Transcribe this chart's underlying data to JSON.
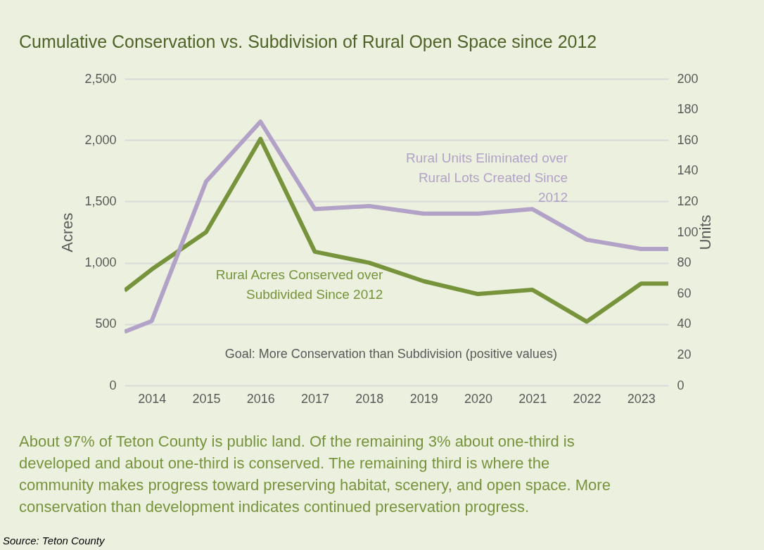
{
  "chart_data": {
    "type": "line",
    "title": "Cumulative Conservation vs. Subdivision of Rural Open Space since 2012",
    "ylabel": "Acres",
    "y2label": "Units",
    "x": [
      2013.5,
      2014,
      2015,
      2016,
      2017,
      2018,
      2019,
      2020,
      2021,
      2022,
      2023,
      2023.5
    ],
    "xlim": [
      2013.5,
      2023.5
    ],
    "xticks": [
      2014,
      2015,
      2016,
      2017,
      2018,
      2019,
      2020,
      2021,
      2022,
      2023
    ],
    "ylim": [
      0,
      2500
    ],
    "yticks": [
      0,
      {
        "value": 500,
        "label": "500"
      },
      {
        "value": 1000,
        "label": "1,000"
      },
      {
        "value": 1500,
        "label": "1,500"
      },
      {
        "value": 2000,
        "label": "2,000"
      },
      {
        "value": 2500,
        "label": "2,500"
      }
    ],
    "y2lim": [
      0,
      200
    ],
    "y2ticks": [
      0,
      20,
      40,
      60,
      80,
      100,
      120,
      140,
      160,
      180,
      200
    ],
    "series": [
      {
        "name": "Rural Acres Conserved over Subdivided Since 2012",
        "color": "#77933c",
        "values": [
          774,
          946,
          1250,
          2010,
          1090,
          1000,
          850,
          745,
          780,
          520,
          830,
          830
        ]
      },
      {
        "name": "Rural Units Eliminated over Rural Lots Created Since 2012",
        "color": "#b3a2c7",
        "axis": "y2",
        "values": [
          35,
          42,
          133,
          172,
          115,
          117,
          112,
          112,
          115,
          95,
          89,
          89
        ]
      }
    ],
    "annotations": [
      "Goal: More Conservation than Subdivision (positive values)",
      "About 97% of Teton County is public land. Of the remaining 3% about one-third is developed and about one-third is conserved. The remaining third is where the community makes progress toward preserving habitat, scenery, and open space. More conservation than development indicates continued preservation progress.",
      "Source: Teton County"
    ],
    "grid": "y",
    "marker": "none",
    "line_style": "solid"
  }
}
